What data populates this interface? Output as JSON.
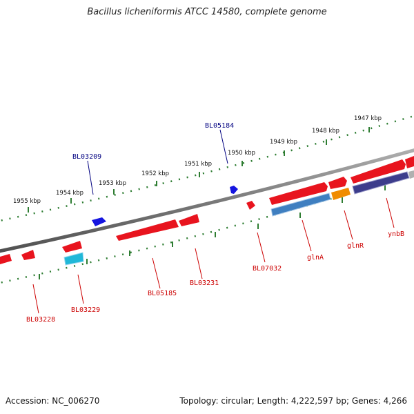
{
  "title": "Bacillus licheniformis ATCC 14580, complete genome",
  "accession_text": "Accession: NC_006270",
  "topology_text": "Topology: circular; Length: 4,222,597 bp; Genes: 4,266",
  "colors": {
    "backbone": "#808080",
    "tick_dots": "#2e7d32",
    "cds_red": "#e8141e",
    "label_red": "#cc0000",
    "label_blue": "#000080",
    "blue_feature": "#1515e0",
    "glnA_bar": "#3f7fc0",
    "glnR_bar": "#f08c00",
    "ynbB_bar": "#3d3d8c",
    "cyan_bar": "#20b8d8"
  },
  "scale_ticks": [
    "1947 kbp",
    "1948 kbp",
    "1949 kbp",
    "1950 kbp",
    "1951 kbp",
    "1952 kbp",
    "1953 kbp",
    "1954 kbp",
    "1955 kbp"
  ],
  "gene_labels": {
    "BL05184": "BL05184",
    "BL03209": "BL03209",
    "BL03228": "BL03228",
    "BL03229": "BL03229",
    "BL05185": "BL05185",
    "BL03231": "BL03231",
    "BL07032": "BL07032",
    "glnA": "glnA",
    "glnR": "glnR",
    "ynbB": "ynbB"
  }
}
